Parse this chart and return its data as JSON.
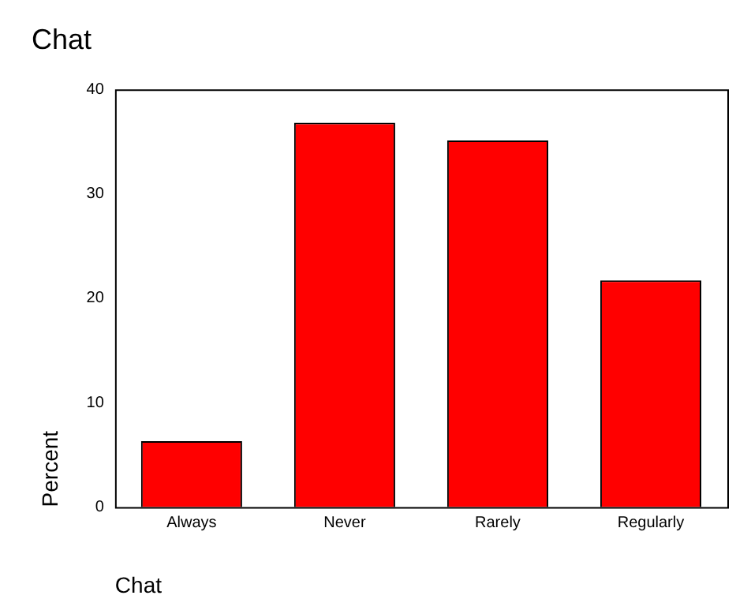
{
  "chart_data": {
    "type": "bar",
    "title": "Chat",
    "xlabel": "Chat",
    "ylabel": "Percent",
    "categories": [
      "Always",
      "Never",
      "Rarely",
      "Regularly"
    ],
    "values": [
      6.3,
      36.8,
      35.1,
      21.7
    ],
    "color": "#ff0000",
    "ylim": [
      0,
      40
    ],
    "yticks": [
      0,
      10,
      20,
      30,
      40
    ],
    "grid": false,
    "legend": false
  }
}
